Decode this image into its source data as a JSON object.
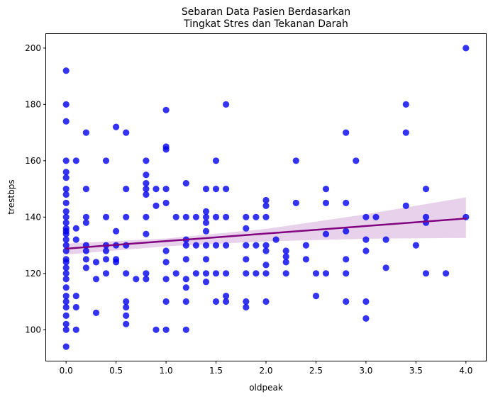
{
  "chart_data": {
    "type": "scatter",
    "title_lines": [
      "Sebaran Data Pasien Berdasarkan",
      "Tingkat Stres dan Tekanan Darah"
    ],
    "xlabel": "oldpeak",
    "ylabel": "trestbps",
    "xlim": [
      -0.2,
      4.2
    ],
    "ylim": [
      89,
      205
    ],
    "xticks": [
      0.0,
      0.5,
      1.0,
      1.5,
      2.0,
      2.5,
      3.0,
      3.5,
      4.0
    ],
    "xtick_labels": [
      "0.0",
      "0.5",
      "1.0",
      "1.5",
      "2.0",
      "2.5",
      "3.0",
      "3.5",
      "4.0"
    ],
    "yticks": [
      100,
      120,
      140,
      160,
      180,
      200
    ],
    "ytick_labels": [
      "100",
      "120",
      "140",
      "160",
      "180",
      "200"
    ],
    "grid": false,
    "point_color": "#0000ee",
    "regression": {
      "x": [
        0,
        4
      ],
      "y": [
        128.8,
        139.5
      ],
      "color": "#800080",
      "ci_color": "#d8b4de",
      "ci_upper": [
        [
          0,
          130.6
        ],
        [
          1,
          132.4
        ],
        [
          2,
          135.8
        ],
        [
          3,
          141.0
        ],
        [
          4,
          147.0
        ]
      ],
      "ci_lower": [
        [
          0,
          126.7
        ],
        [
          1,
          129.6
        ],
        [
          2,
          131.4
        ],
        [
          3,
          132.3
        ],
        [
          4,
          132.6
        ]
      ]
    },
    "points": [
      [
        0,
        192
      ],
      [
        0,
        180
      ],
      [
        0,
        174
      ],
      [
        0,
        160
      ],
      [
        0,
        156
      ],
      [
        0,
        154
      ],
      [
        0,
        150
      ],
      [
        0,
        148
      ],
      [
        0,
        145
      ],
      [
        0,
        142
      ],
      [
        0,
        140
      ],
      [
        0,
        138
      ],
      [
        0,
        136
      ],
      [
        0,
        135
      ],
      [
        0,
        134
      ],
      [
        0,
        132
      ],
      [
        0,
        130
      ],
      [
        0,
        128
      ],
      [
        0,
        125
      ],
      [
        0,
        124
      ],
      [
        0,
        122
      ],
      [
        0,
        120
      ],
      [
        0,
        118
      ],
      [
        0,
        115
      ],
      [
        0,
        112
      ],
      [
        0,
        110
      ],
      [
        0,
        108
      ],
      [
        0,
        105
      ],
      [
        0,
        102
      ],
      [
        0,
        100
      ],
      [
        0,
        94
      ],
      [
        0.1,
        160
      ],
      [
        0.1,
        136
      ],
      [
        0.1,
        132
      ],
      [
        0.1,
        112
      ],
      [
        0.1,
        108
      ],
      [
        0.1,
        100
      ],
      [
        0.2,
        170
      ],
      [
        0.2,
        150
      ],
      [
        0.2,
        140
      ],
      [
        0.2,
        138
      ],
      [
        0.2,
        130
      ],
      [
        0.2,
        128
      ],
      [
        0.2,
        125
      ],
      [
        0.2,
        122
      ],
      [
        0.3,
        124
      ],
      [
        0.3,
        118
      ],
      [
        0.3,
        106
      ],
      [
        0.4,
        160
      ],
      [
        0.4,
        140
      ],
      [
        0.4,
        130
      ],
      [
        0.4,
        128
      ],
      [
        0.4,
        125
      ],
      [
        0.4,
        120
      ],
      [
        0.5,
        172
      ],
      [
        0.5,
        135
      ],
      [
        0.5,
        130
      ],
      [
        0.5,
        125
      ],
      [
        0.5,
        124
      ],
      [
        0.6,
        170
      ],
      [
        0.6,
        150
      ],
      [
        0.6,
        140
      ],
      [
        0.6,
        130
      ],
      [
        0.6,
        120
      ],
      [
        0.6,
        110
      ],
      [
        0.6,
        108
      ],
      [
        0.6,
        105
      ],
      [
        0.6,
        102
      ],
      [
        0.7,
        118
      ],
      [
        0.8,
        160
      ],
      [
        0.8,
        155
      ],
      [
        0.8,
        152
      ],
      [
        0.8,
        150
      ],
      [
        0.8,
        148
      ],
      [
        0.8,
        140
      ],
      [
        0.8,
        134
      ],
      [
        0.8,
        120
      ],
      [
        0.8,
        118
      ],
      [
        0.9,
        150
      ],
      [
        0.9,
        144
      ],
      [
        0.9,
        100
      ],
      [
        1.0,
        178
      ],
      [
        1.0,
        165
      ],
      [
        1.0,
        164
      ],
      [
        1.0,
        150
      ],
      [
        1.0,
        145
      ],
      [
        1.0,
        128
      ],
      [
        1.0,
        124
      ],
      [
        1.0,
        118
      ],
      [
        1.0,
        110
      ],
      [
        1.0,
        100
      ],
      [
        1.1,
        140
      ],
      [
        1.1,
        120
      ],
      [
        1.2,
        152
      ],
      [
        1.2,
        140
      ],
      [
        1.2,
        132
      ],
      [
        1.2,
        130
      ],
      [
        1.2,
        125
      ],
      [
        1.2,
        118
      ],
      [
        1.2,
        115
      ],
      [
        1.2,
        110
      ],
      [
        1.2,
        100
      ],
      [
        1.3,
        140
      ],
      [
        1.3,
        130
      ],
      [
        1.3,
        120
      ],
      [
        1.4,
        150
      ],
      [
        1.4,
        142
      ],
      [
        1.4,
        140
      ],
      [
        1.4,
        138
      ],
      [
        1.4,
        135
      ],
      [
        1.4,
        130
      ],
      [
        1.4,
        125
      ],
      [
        1.4,
        120
      ],
      [
        1.4,
        117
      ],
      [
        1.5,
        160
      ],
      [
        1.5,
        150
      ],
      [
        1.5,
        140
      ],
      [
        1.5,
        130
      ],
      [
        1.5,
        120
      ],
      [
        1.5,
        110
      ],
      [
        1.6,
        180
      ],
      [
        1.6,
        150
      ],
      [
        1.6,
        140
      ],
      [
        1.6,
        130
      ],
      [
        1.6,
        120
      ],
      [
        1.6,
        112
      ],
      [
        1.6,
        110
      ],
      [
        1.8,
        140
      ],
      [
        1.8,
        136
      ],
      [
        1.8,
        130
      ],
      [
        1.8,
        125
      ],
      [
        1.8,
        120
      ],
      [
        1.8,
        110
      ],
      [
        1.8,
        108
      ],
      [
        1.9,
        140
      ],
      [
        1.9,
        130
      ],
      [
        1.9,
        120
      ],
      [
        2.0,
        146
      ],
      [
        2.0,
        144
      ],
      [
        2.0,
        140
      ],
      [
        2.0,
        130
      ],
      [
        2.0,
        128
      ],
      [
        2.0,
        123
      ],
      [
        2.0,
        120
      ],
      [
        2.0,
        110
      ],
      [
        2.1,
        132
      ],
      [
        2.2,
        128
      ],
      [
        2.2,
        126
      ],
      [
        2.2,
        124
      ],
      [
        2.2,
        120
      ],
      [
        2.3,
        160
      ],
      [
        2.3,
        145
      ],
      [
        2.4,
        130
      ],
      [
        2.4,
        125
      ],
      [
        2.5,
        120
      ],
      [
        2.5,
        112
      ],
      [
        2.6,
        150
      ],
      [
        2.6,
        145
      ],
      [
        2.6,
        134
      ],
      [
        2.6,
        120
      ],
      [
        2.8,
        170
      ],
      [
        2.8,
        145
      ],
      [
        2.8,
        135
      ],
      [
        2.8,
        125
      ],
      [
        2.8,
        120
      ],
      [
        2.8,
        110
      ],
      [
        2.9,
        160
      ],
      [
        3.0,
        140
      ],
      [
        3.0,
        132
      ],
      [
        3.0,
        128
      ],
      [
        3.0,
        110
      ],
      [
        3.0,
        104
      ],
      [
        3.1,
        140
      ],
      [
        3.2,
        132
      ],
      [
        3.2,
        122
      ],
      [
        3.4,
        180
      ],
      [
        3.4,
        170
      ],
      [
        3.4,
        144
      ],
      [
        3.5,
        130
      ],
      [
        3.6,
        150
      ],
      [
        3.6,
        140
      ],
      [
        3.6,
        138
      ],
      [
        3.6,
        120
      ],
      [
        3.8,
        120
      ],
      [
        4.0,
        200
      ],
      [
        4.0,
        140
      ]
    ]
  }
}
